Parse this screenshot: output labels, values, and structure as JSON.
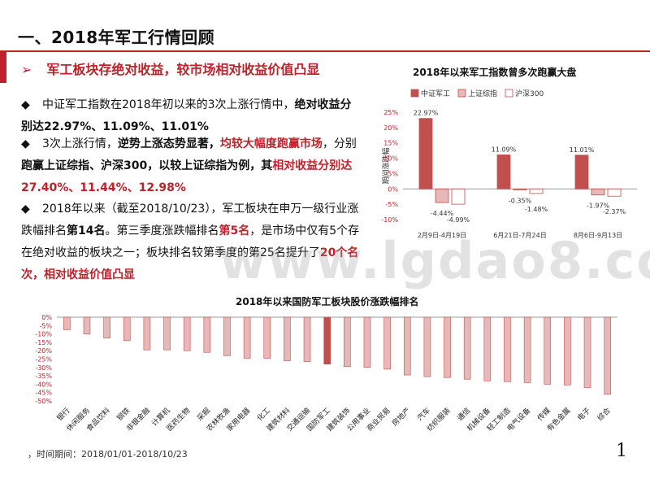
{
  "title": "一、2018年军工行情回顾",
  "headline": {
    "arrow": "➢",
    "text": "军工板块存绝对收益，较市场相对收益价值凸显"
  },
  "bullets": [
    {
      "symbol": "◆",
      "parts": [
        "中证军工指数在2018年初以来的3次上涨行情中，",
        "绝对收益分别达22.97%、11.09%、11.01%"
      ]
    },
    {
      "symbol": "◆",
      "parts": [
        "3次上涨行情，",
        "逆势上涨态势显著，",
        "均较大幅度跑赢市场",
        "，分别",
        "跑赢上证综指、沪深300，以较上证综指为例，其",
        "相对收益分别达27.40%、11.44%、12.98%"
      ]
    },
    {
      "symbol": "◆",
      "parts": [
        "2018年以来（截至2018/10/23），军工板块在申万一级行业涨跌幅排名",
        "第14名",
        "。第三季度涨跌幅排名",
        "第5名",
        "，是市场中仅有5个存在绝对收益的板块之一；板块排名较第季度的第25名提升了",
        "20个名次，相对收益价值凸显"
      ]
    }
  ],
  "watermark": "www.lgdao8.com",
  "footnote": "，时间期间：2018/01/01-2018/10/23",
  "page_number": "1",
  "chart_data": [
    {
      "type": "bar",
      "title": "2018年以来军工指数曾多次跑赢大盘",
      "ylabel": "期间涨跌幅",
      "legend_position": "top",
      "categories": [
        "2月9日-4月19日",
        "6月21日-7月24日",
        "8月6日-9月13日"
      ],
      "ylim": [
        -10,
        25
      ],
      "yticks": [
        "25%",
        "20%",
        "15%",
        "10%",
        "5%",
        "0%",
        "-5%",
        "-10%"
      ],
      "ytick_values": [
        25,
        20,
        15,
        10,
        5,
        0,
        -5,
        -10
      ],
      "series": [
        {
          "name": "中证军工",
          "color": "#c0504d",
          "values": [
            22.97,
            11.09,
            11.01
          ],
          "labels": [
            "22.97%",
            "11.09%",
            "11.01%"
          ]
        },
        {
          "name": "上证综指",
          "color": "#e6b8b7",
          "values": [
            -4.44,
            -0.35,
            -1.97
          ],
          "labels": [
            "-4.44%",
            "-0.35%",
            "-1.97%"
          ]
        },
        {
          "name": "沪深300",
          "color": "#ffffff",
          "values": [
            -4.99,
            -1.48,
            -2.37
          ],
          "labels": [
            "-4.99%",
            "-1.48%",
            "-2.37%"
          ]
        }
      ]
    },
    {
      "type": "bar",
      "title": "2018年以来国防军工板块股价涨跌幅排名",
      "ylim": [
        -50,
        0
      ],
      "yticks": [
        "0%",
        "-5%",
        "-10%",
        "-15%",
        "-20%",
        "-25%",
        "-30%",
        "-35%",
        "-40%",
        "-45%",
        "-50%"
      ],
      "ytick_values": [
        0,
        -5,
        -10,
        -15,
        -20,
        -25,
        -30,
        -35,
        -40,
        -45,
        -50
      ],
      "highlight": "国防军工",
      "highlight_color": "#c0504d",
      "bar_color": "#e6b8b7",
      "categories": [
        "银行",
        "休闲服务",
        "食品饮料",
        "钢铁",
        "非银金融",
        "计算机",
        "医药生物",
        "采掘",
        "农林牧渔",
        "家用电器",
        "化工",
        "建筑材料",
        "交通运输",
        "国防军工",
        "建筑装饰",
        "公用事业",
        "商业贸易",
        "房地产",
        "汽车",
        "纺织服装",
        "通信",
        "机械设备",
        "轻工制造",
        "电气设备",
        "传媒",
        "有色金属",
        "电子",
        "综合"
      ],
      "values": [
        -7.5,
        -10.0,
        -12.5,
        -14.0,
        -19.5,
        -19.5,
        -20.0,
        -21.0,
        -23.0,
        -24.5,
        -24.5,
        -26.0,
        -26.5,
        -28.0,
        -29.5,
        -30.0,
        -31.0,
        -34.5,
        -35.5,
        -36.0,
        -37.0,
        -38.0,
        -38.5,
        -39.0,
        -40.0,
        -40.5,
        -42.0,
        -46.0
      ]
    }
  ]
}
